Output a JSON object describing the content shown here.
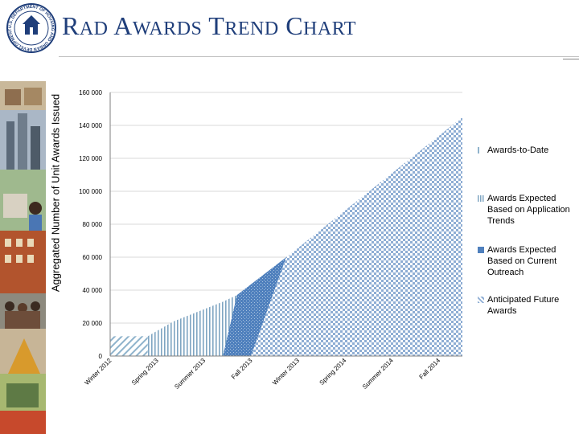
{
  "header": {
    "title_first_letter_1": "R",
    "title_rest_1": "AD",
    "title_first_letter_2": "A",
    "title_rest_2": "WARDS",
    "title_first_letter_3": "T",
    "title_rest_3": "REND",
    "title_first_letter_4": "C",
    "title_rest_4": "HART",
    "seal_text": "U.S. DEPARTMENT OF HOUSING AND URBAN DEVELOPMENT"
  },
  "colors": {
    "title": "#1f3e7a",
    "awards_to_date": "#8fb3cc",
    "application_trends": "#7fa5c2",
    "current_outreach": "#4f80bd",
    "future_awards": "#8faed4"
  },
  "chart_data": {
    "type": "area",
    "title": "RAD Awards Trend Chart",
    "ylabel": "Aggregated Number of Unit Awards Issued",
    "xlabel": "",
    "ylim": [
      0,
      160000
    ],
    "yticks": [
      0,
      20000,
      40000,
      60000,
      80000,
      100000,
      120000,
      140000,
      160000
    ],
    "ytick_labels": [
      "0",
      "20 000",
      "40 000",
      "60 000",
      "80 000",
      "100 000",
      "120 000",
      "140 000",
      "160 000"
    ],
    "categories": [
      "Winter 2012",
      "Spring 2013",
      "Summer 2013",
      "Fall 2013",
      "Winter 2013",
      "Spring 2014",
      "Summer 2014",
      "Fall 2014"
    ],
    "grid": "horizontal",
    "legend_position": "right",
    "series": [
      {
        "name": "Awards-to-Date",
        "points": [
          [
            0,
            12000
          ],
          [
            0.4,
            12000
          ],
          [
            0.8,
            12000
          ],
          [
            0.8,
            0
          ],
          [
            0,
            0
          ]
        ]
      },
      {
        "name": "Awards Expected Based on Application Trends",
        "points": [
          [
            0.1,
            0
          ],
          [
            0.4,
            12000
          ],
          [
            0.8,
            12000
          ],
          [
            1.35,
            21000
          ],
          [
            2.4,
            33000
          ],
          [
            2.7,
            37000
          ],
          [
            2.4,
            0
          ]
        ]
      },
      {
        "name": "Awards Expected Based on Current Outreach",
        "points": [
          [
            2.4,
            0
          ],
          [
            2.7,
            37000
          ],
          [
            3.75,
            60000
          ],
          [
            3.0,
            0
          ]
        ]
      },
      {
        "name": "Anticipated Future Awards",
        "points": [
          [
            3.0,
            0
          ],
          [
            3.75,
            60000
          ],
          [
            7.5,
            145000
          ],
          [
            7.5,
            0
          ]
        ]
      }
    ]
  }
}
